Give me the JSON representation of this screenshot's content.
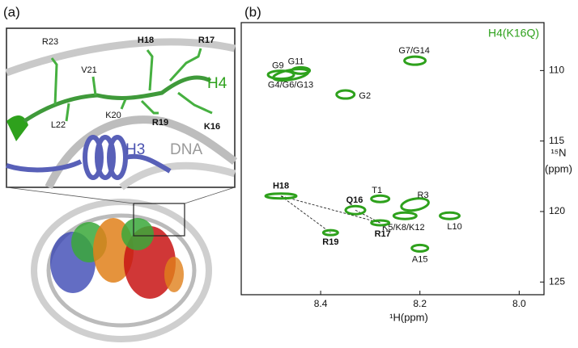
{
  "panel_a": {
    "label": "(a)",
    "residues": [
      {
        "text": "R23",
        "bold": false
      },
      {
        "text": "H18",
        "bold": true
      },
      {
        "text": "R17",
        "bold": true
      },
      {
        "text": "V21",
        "bold": false
      },
      {
        "text": "K20",
        "bold": false
      },
      {
        "text": "L22",
        "bold": false
      },
      {
        "text": "R19",
        "bold": true
      },
      {
        "text": "K16",
        "bold": true
      }
    ],
    "h4": "H4",
    "h3": "H3",
    "dna": "DNA"
  },
  "panel_b": {
    "label": "(b)"
  },
  "chart_data": {
    "type": "scatter",
    "title": "H4(K16Q)",
    "color": "#2ea11c",
    "x_label": "¹H(ppm)",
    "y_label": "¹⁵N",
    "y_unit": "(ppm)",
    "xlim": [
      8.56,
      7.95
    ],
    "ylim": [
      106.6,
      125.9
    ],
    "xticks": [
      8.4,
      8.2,
      {
        "value": 8,
        "label": "8.0"
      }
    ],
    "yticks": [
      110,
      115,
      120,
      125
    ],
    "peaks": [
      {
        "label": "G7/G14",
        "x": 8.21,
        "y": 109.3,
        "bold": false
      },
      {
        "label": "G9",
        "x": 8.46,
        "y": 110.3,
        "bold": false
      },
      {
        "label": "G11",
        "x": 8.44,
        "y": 110.0,
        "bold": false
      },
      {
        "label": "G4/G6/G13",
        "x": 8.48,
        "y": 110.3,
        "bold": false
      },
      {
        "label": "G2",
        "x": 8.35,
        "y": 111.7,
        "bold": false
      },
      {
        "label": "T1",
        "x": 8.28,
        "y": 119.1,
        "bold": false
      },
      {
        "label": "Q16",
        "x": 8.33,
        "y": 119.9,
        "bold": true
      },
      {
        "label": "R3",
        "x": 8.21,
        "y": 119.5,
        "bold": false
      },
      {
        "label": "K5/K8/K12",
        "x": 8.23,
        "y": 120.3,
        "bold": false
      },
      {
        "label": "L10",
        "x": 8.14,
        "y": 120.3,
        "bold": false
      },
      {
        "label": "A15",
        "x": 8.2,
        "y": 122.6,
        "bold": false
      },
      {
        "label": "H18",
        "x": 8.48,
        "y": 118.9,
        "bold": true
      },
      {
        "label": "R19",
        "x": 8.38,
        "y": 121.5,
        "bold": true
      },
      {
        "label": "R17",
        "x": 8.28,
        "y": 120.8,
        "bold": true
      }
    ]
  }
}
